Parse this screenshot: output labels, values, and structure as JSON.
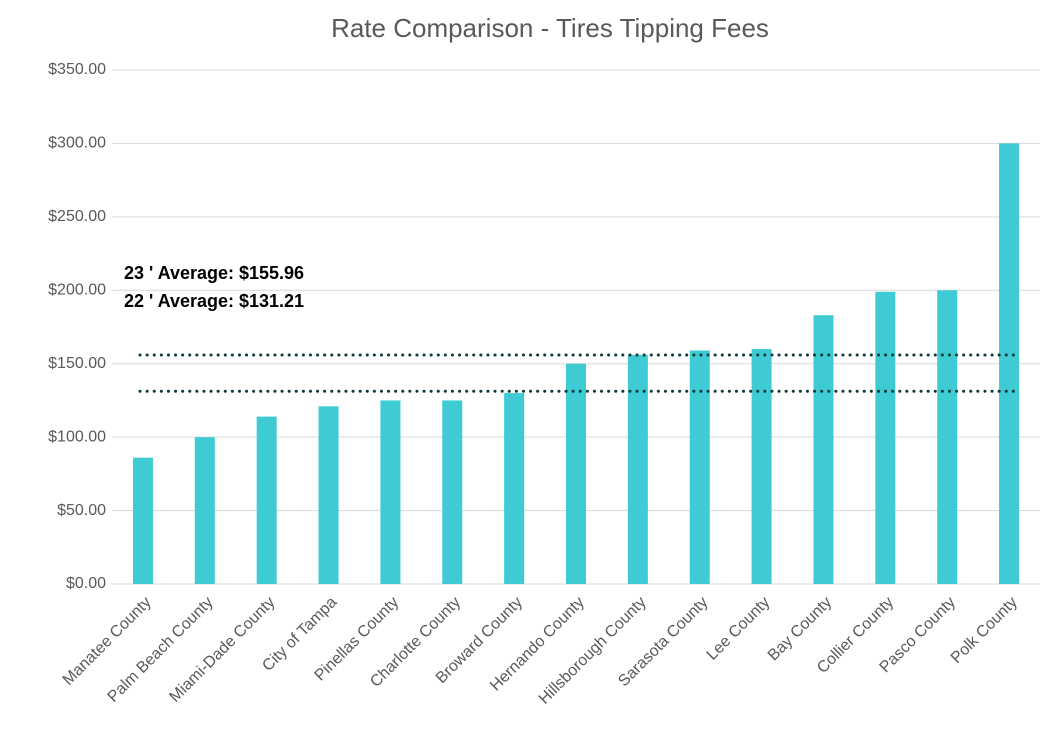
{
  "chart_data": {
    "type": "bar",
    "title": "Rate Comparison - Tires Tipping Fees",
    "categories": [
      "Manatee County",
      "Palm Beach County",
      "Miami-Dade County",
      "City of Tampa",
      "Pinellas County",
      "Charlotte County",
      "Broward County",
      "Hernando County",
      "Hillsborough County",
      "Sarasota County",
      "Lee County",
      "Bay County",
      "Collier County",
      "Pasco County",
      "Polk County"
    ],
    "values": [
      86,
      100,
      114,
      121,
      125,
      125,
      130,
      150,
      156,
      159,
      160,
      183,
      199,
      200,
      300
    ],
    "color": "#3ecbd4",
    "ylim": [
      0,
      350
    ],
    "yticks": [
      {
        "value": 0,
        "label": "$0.00"
      },
      {
        "value": 50,
        "label": "$50.00"
      },
      {
        "value": 100,
        "label": "$100.00"
      },
      {
        "value": 150,
        "label": "$150.00"
      },
      {
        "value": 200,
        "label": "$200.00"
      },
      {
        "value": 250,
        "label": "$250.00"
      },
      {
        "value": 300,
        "label": "$300.00"
      },
      {
        "value": 350,
        "label": "$350.00"
      }
    ],
    "grid": true,
    "reference_lines": [
      {
        "label": "23 ' Average: $155.96",
        "value": 155.96,
        "color": "#0d3b3b"
      },
      {
        "label": "22 ' Average: $131.21",
        "value": 131.21,
        "color": "#0d3b3b"
      }
    ]
  }
}
